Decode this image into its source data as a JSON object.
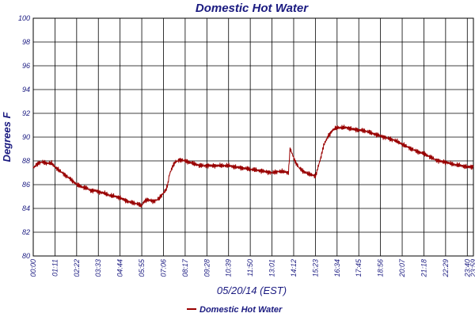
{
  "chart_data": {
    "type": "line",
    "title": "Domestic Hot Water",
    "ylabel": "Degrees F",
    "xlabel": "05/20/14 (EST)",
    "ylim": [
      80,
      100
    ],
    "yticks": [
      80,
      82,
      84,
      86,
      88,
      90,
      92,
      94,
      96,
      98,
      100
    ],
    "xlim": [
      0,
      1440
    ],
    "xticks": [
      {
        "t": 0,
        "label": "00:00"
      },
      {
        "t": 71,
        "label": "01:11"
      },
      {
        "t": 142,
        "label": "02:22"
      },
      {
        "t": 213,
        "label": "03:33"
      },
      {
        "t": 284,
        "label": "04:44"
      },
      {
        "t": 355,
        "label": "05:55"
      },
      {
        "t": 426,
        "label": "07:06"
      },
      {
        "t": 497,
        "label": "08:17"
      },
      {
        "t": 568,
        "label": "09:28"
      },
      {
        "t": 639,
        "label": "10:39"
      },
      {
        "t": 710,
        "label": "11:50"
      },
      {
        "t": 781,
        "label": "13:01"
      },
      {
        "t": 852,
        "label": "14:12"
      },
      {
        "t": 923,
        "label": "15:23"
      },
      {
        "t": 994,
        "label": "16:34"
      },
      {
        "t": 1065,
        "label": "17:45"
      },
      {
        "t": 1136,
        "label": "18:56"
      },
      {
        "t": 1207,
        "label": "20:07"
      },
      {
        "t": 1278,
        "label": "21:18"
      },
      {
        "t": 1349,
        "label": "22:29"
      },
      {
        "t": 1420,
        "label": "23:40"
      },
      {
        "t": 1440,
        "label": "23:59"
      }
    ],
    "grid": true,
    "legend": "bottom-center",
    "series": [
      {
        "name": "Domestic Hot Water",
        "color": "#990000",
        "x": [
          0,
          15,
          30,
          45,
          60,
          71,
          85,
          100,
          115,
          130,
          142,
          160,
          175,
          190,
          205,
          213,
          230,
          250,
          270,
          284,
          300,
          320,
          340,
          355,
          360,
          368,
          380,
          395,
          410,
          426,
          435,
          440,
          445,
          455,
          465,
          480,
          497,
          520,
          545,
          568,
          590,
          615,
          639,
          660,
          685,
          710,
          735,
          760,
          781,
          800,
          820,
          835,
          840,
          844,
          850,
          858,
          870,
          885,
          900,
          915,
          923,
          926,
          932,
          940,
          950,
          965,
          980,
          994,
          1010,
          1025,
          1040,
          1065,
          1090,
          1110,
          1136,
          1160,
          1185,
          1207,
          1230,
          1255,
          1278,
          1300,
          1325,
          1349,
          1375,
          1400,
          1420,
          1440
        ],
        "y": [
          87.4,
          87.8,
          87.9,
          87.8,
          87.8,
          87.5,
          87.2,
          86.9,
          86.6,
          86.3,
          86.0,
          85.8,
          85.7,
          85.5,
          85.5,
          85.4,
          85.3,
          85.1,
          85.0,
          84.9,
          84.7,
          84.5,
          84.4,
          84.2,
          84.5,
          84.7,
          84.7,
          84.6,
          84.8,
          85.3,
          85.6,
          86.0,
          86.8,
          87.5,
          87.9,
          88.1,
          88.0,
          87.8,
          87.6,
          87.6,
          87.6,
          87.6,
          87.6,
          87.5,
          87.4,
          87.3,
          87.2,
          87.1,
          87.0,
          87.1,
          87.1,
          87.0,
          89.0,
          88.8,
          88.4,
          87.9,
          87.4,
          87.1,
          86.9,
          86.8,
          86.7,
          86.9,
          87.5,
          88.2,
          89.3,
          90.1,
          90.6,
          90.8,
          90.8,
          90.8,
          90.7,
          90.6,
          90.5,
          90.3,
          90.1,
          89.9,
          89.7,
          89.4,
          89.1,
          88.8,
          88.6,
          88.3,
          88.0,
          87.9,
          87.7,
          87.6,
          87.5,
          87.5
        ]
      }
    ]
  }
}
